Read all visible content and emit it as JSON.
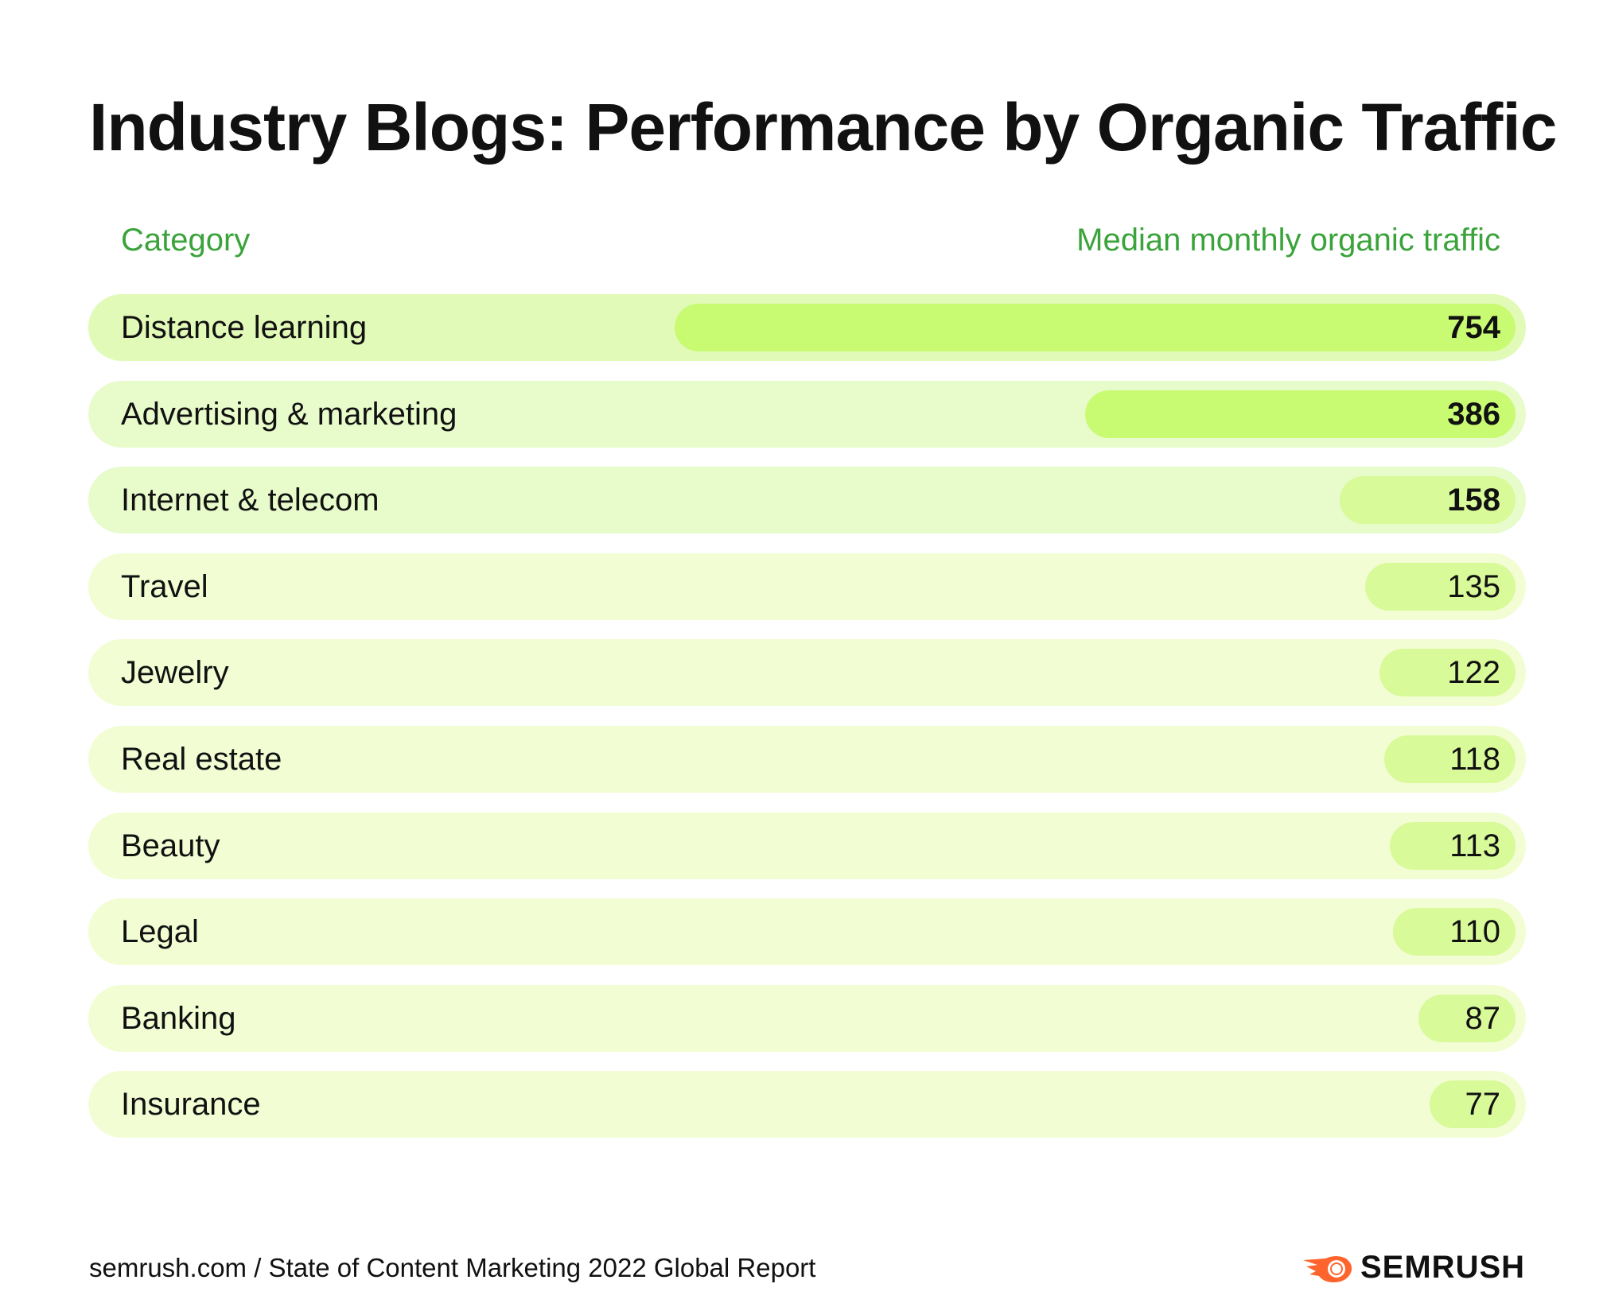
{
  "title": "Industry Blogs: Performance by Organic Traffic",
  "headers": {
    "category": "Category",
    "value": "Median monthly organic traffic"
  },
  "footer": "semrush.com / State of Content Marketing 2022 Global Report",
  "logo": {
    "text": "SEMRUSH",
    "color": "#ff642d"
  },
  "colors": {
    "header": "#3aa33a",
    "bar": "#c8fb72",
    "row_top": "#e2fab8",
    "row": "#f2fdd3"
  },
  "chart_data": {
    "type": "bar",
    "orientation": "horizontal",
    "title": "Industry Blogs: Performance by Organic Traffic",
    "xlabel": "Median monthly organic traffic",
    "ylabel": "Category",
    "categories": [
      "Distance learning",
      "Advertising & marketing",
      "Internet & telecom",
      "Travel",
      "Jewelry",
      "Real estate",
      "Beauty",
      "Legal",
      "Banking",
      "Insurance"
    ],
    "values": [
      754,
      386,
      158,
      135,
      122,
      118,
      113,
      110,
      87,
      77
    ],
    "value_labels": [
      "754",
      "386",
      "158",
      "135",
      "122",
      "118",
      "113",
      "110",
      "87",
      "77"
    ],
    "highlighted": [
      true,
      true,
      true,
      false,
      false,
      false,
      false,
      false,
      false,
      false
    ],
    "grid": false
  }
}
